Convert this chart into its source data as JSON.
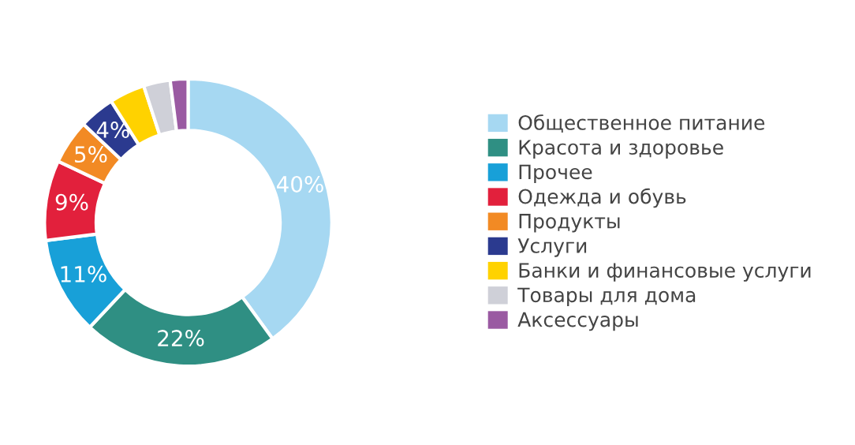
{
  "chart_data": {
    "type": "donut",
    "categories": [
      "Общественное питание",
      "Красота и здоровье",
      "Прочее",
      "Одежда и обувь",
      "Продукты",
      "Услуги",
      "Банки и финансовые услуги",
      "Товары для дома",
      "Аксессуары"
    ],
    "values": [
      40,
      22,
      11,
      9,
      5,
      4,
      4,
      3,
      2
    ],
    "value_labels": [
      "40%",
      "22%",
      "11%",
      "9%",
      "5%",
      "4%",
      null,
      null,
      null
    ],
    "colors": [
      "#a6d8f2",
      "#2f8f83",
      "#18a0d8",
      "#e2203c",
      "#f28a24",
      "#2b3a8f",
      "#ffd200",
      "#cfd0d8",
      "#9a5aa2"
    ],
    "legend": "right"
  }
}
